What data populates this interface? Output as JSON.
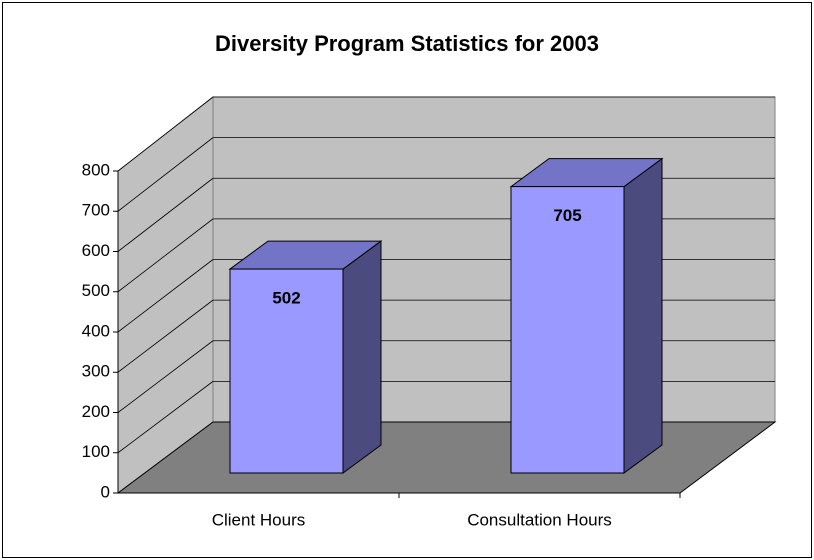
{
  "chart_data": {
    "type": "bar3d",
    "title": "Diversity Program Statistics for 2003",
    "categories": [
      "Client Hours",
      "Consultation Hours"
    ],
    "values": [
      502,
      705
    ],
    "color": "#9999ff",
    "ylim": [
      0,
      800
    ],
    "yticks": [
      0,
      100,
      200,
      300,
      400,
      500,
      600,
      700,
      800
    ],
    "grid": true
  }
}
